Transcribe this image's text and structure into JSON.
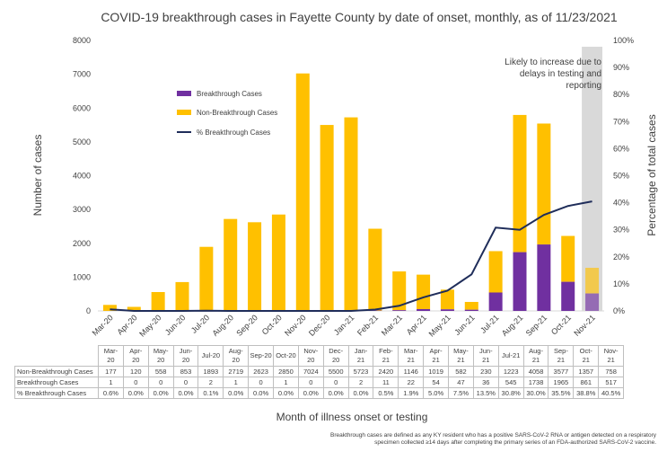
{
  "chart_data": {
    "type": "bar",
    "title": "COVID-19 breakthrough cases in Fayette County by date of onset, monthly, as of 11/23/2021",
    "xlabel": "Month of illness onset or testing",
    "ylabel": "Number of cases",
    "y2label": "Percentage of total cases",
    "ylim": [
      0,
      8000
    ],
    "y2lim": [
      0,
      100
    ],
    "y_ticks": [
      "0",
      "1000",
      "2000",
      "3000",
      "4000",
      "5000",
      "6000",
      "7000",
      "8000"
    ],
    "y2_ticks": [
      "0%",
      "10%",
      "20%",
      "30%",
      "40%",
      "50%",
      "60%",
      "70%",
      "80%",
      "90%",
      "100%"
    ],
    "stacked": true,
    "categories": [
      "Mar-20",
      "Apr-20",
      "May-20",
      "Jun-20",
      "Jul-20",
      "Aug-20",
      "Sep-20",
      "Oct-20",
      "Nov-20",
      "Dec-20",
      "Jan-21",
      "Feb-21",
      "Mar-21",
      "Apr-21",
      "May-21",
      "Jun-21",
      "Jul-21",
      "Aug-21",
      "Sep-21",
      "Oct-21",
      "Nov-21"
    ],
    "table_headers": [
      [
        "Mar-",
        "20"
      ],
      [
        "Apr-",
        "20"
      ],
      [
        "May-",
        "20"
      ],
      [
        "Jun-",
        "20"
      ],
      [
        "Jul-20",
        ""
      ],
      [
        "Aug-",
        "20"
      ],
      [
        "Sep-20",
        ""
      ],
      [
        "Oct-20",
        ""
      ],
      [
        "Nov-",
        "20"
      ],
      [
        "Dec-",
        "20"
      ],
      [
        "Jan-",
        "21"
      ],
      [
        "Feb-",
        "21"
      ],
      [
        "Mar-",
        "21"
      ],
      [
        "Apr-",
        "21"
      ],
      [
        "May-",
        "21"
      ],
      [
        "Jun-",
        "21"
      ],
      [
        "Jul-21",
        ""
      ],
      [
        "Aug-",
        "21"
      ],
      [
        "Sep-",
        "21"
      ],
      [
        "Oct-",
        "21"
      ],
      [
        "Nov-",
        "21"
      ]
    ],
    "series": [
      {
        "name": "Breakthrough Cases",
        "kind": "bar",
        "color": "#7030a0",
        "values": [
          1,
          0,
          0,
          0,
          2,
          1,
          0,
          1,
          0,
          0,
          2,
          11,
          22,
          54,
          47,
          36,
          545,
          1738,
          1965,
          861,
          517
        ]
      },
      {
        "name": "Non-Breakthrough Cases",
        "kind": "bar",
        "color": "#ffc000",
        "values": [
          177,
          120,
          558,
          853,
          1893,
          2719,
          2623,
          2850,
          7024,
          5500,
          5723,
          2420,
          1146,
          1019,
          582,
          230,
          1223,
          4058,
          3577,
          1357,
          758
        ]
      },
      {
        "name": "% Breakthrough Cases",
        "kind": "line",
        "axis": "right",
        "color": "#1f2d5a",
        "values": [
          0.6,
          0.0,
          0.0,
          0.0,
          0.1,
          0.0,
          0.0,
          0.0,
          0.0,
          0.0,
          0.0,
          0.5,
          1.9,
          5.0,
          7.5,
          13.5,
          30.8,
          30.0,
          35.5,
          38.8,
          40.5
        ],
        "labels": [
          "0.6%",
          "0.0%",
          "0.0%",
          "0.0%",
          "0.1%",
          "0.0%",
          "0.0%",
          "0.0%",
          "0.0%",
          "0.0%",
          "0.0%",
          "0.5%",
          "1.9%",
          "5.0%",
          "7.5%",
          "13.5%",
          "30.8%",
          "30.0%",
          "35.5%",
          "38.8%",
          "40.5%"
        ]
      }
    ],
    "table_row_labels": [
      "Non-Breakthrough Cases",
      "Breakthrough Cases",
      "% Breakthrough Cases"
    ],
    "annotation": [
      "Likely to increase due to",
      "delays in testing and",
      "reporting"
    ],
    "shaded_category": "Nov-21",
    "shade_color": "#d9d9d9",
    "legend_position": "upper-left",
    "grid": false
  },
  "footnote": [
    "Breakthrough cases are defined as any KY resident who has a positive SARS-CoV-2 RNA or antigen detected on a respiratory",
    "specimen collected ≥14 days after completing the primary series of an FDA-authorized SARS-CoV-2 vaccine."
  ]
}
